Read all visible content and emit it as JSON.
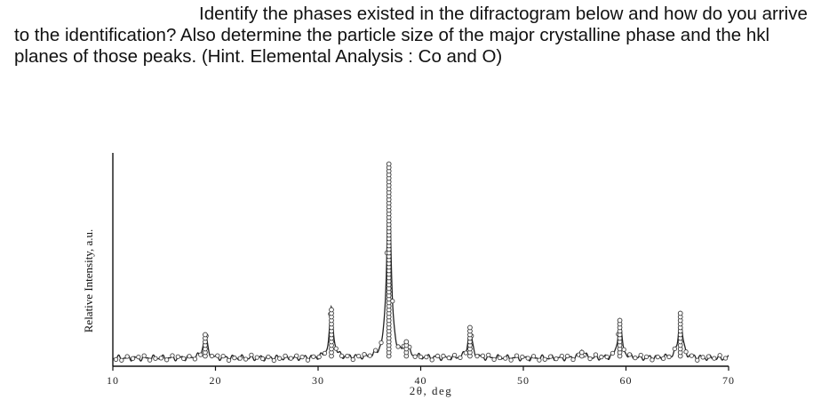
{
  "question": {
    "text": "Identify the phases existed in the difractogram below and how do you arrive to the identification? Also determine the particle size of the major crystalline phase and the hkl planes of those peaks. (Hint. Elemental Analysis : Co and O)"
  },
  "chart_data": {
    "type": "line",
    "xlabel": "2θ, deg",
    "ylabel": "Relative Intensity, a.u.",
    "xlim": [
      10,
      70
    ],
    "ylim": [
      0,
      100
    ],
    "x_ticks": [
      10,
      20,
      30,
      40,
      50,
      60,
      70
    ],
    "baseline": 4,
    "peaks": [
      {
        "x": 19.0,
        "y": 16
      },
      {
        "x": 31.3,
        "y": 28
      },
      {
        "x": 36.9,
        "y": 100
      },
      {
        "x": 38.6,
        "y": 12
      },
      {
        "x": 44.8,
        "y": 19
      },
      {
        "x": 55.7,
        "y": 8
      },
      {
        "x": 59.4,
        "y": 23
      },
      {
        "x": 65.3,
        "y": 26
      }
    ]
  }
}
